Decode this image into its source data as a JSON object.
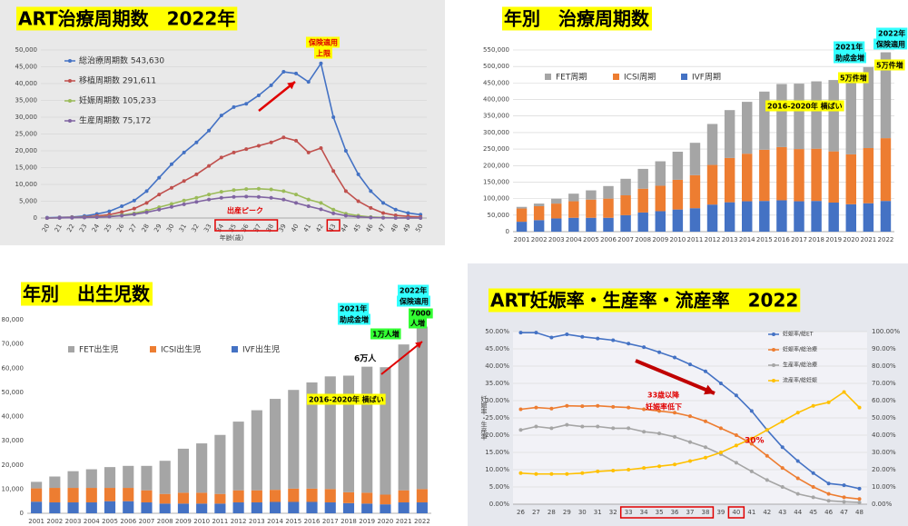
{
  "chart_data": [
    {
      "type": "line",
      "title": "ART治療周期数　2022年",
      "xlabel": "年齢(歳)",
      "categories": [
        "20",
        "21",
        "22",
        "23",
        "24",
        "25",
        "26",
        "27",
        "28",
        "29",
        "30",
        "31",
        "32",
        "33",
        "34",
        "35",
        "36",
        "37",
        "38",
        "39",
        "40",
        "41",
        "42",
        "43",
        "44",
        "45",
        "46",
        "47",
        "48",
        "49",
        "50"
      ],
      "series": [
        {
          "name": "総治療周期数 543,630",
          "color": "#4472c4",
          "values": [
            100,
            200,
            300,
            600,
            1200,
            2000,
            3500,
            5200,
            8000,
            12000,
            16000,
            19500,
            22500,
            26000,
            30500,
            33000,
            34000,
            36500,
            39500,
            43500,
            43000,
            40500,
            46000,
            30000,
            20000,
            13000,
            8000,
            4500,
            2500,
            1500,
            1000
          ]
        },
        {
          "name": "移植周期数 291,611",
          "color": "#c0504d",
          "values": [
            0,
            100,
            200,
            300,
            600,
            1000,
            1800,
            2800,
            4500,
            7000,
            9000,
            11000,
            13000,
            15500,
            18000,
            19500,
            20500,
            21500,
            22500,
            24000,
            23000,
            19500,
            20800,
            14000,
            8000,
            5000,
            3000,
            1500,
            800,
            500,
            300
          ]
        },
        {
          "name": "妊娠周期数 105,233",
          "color": "#9bbb59",
          "values": [
            0,
            50,
            100,
            200,
            300,
            500,
            900,
            1400,
            2200,
            3200,
            4200,
            5200,
            6000,
            7000,
            7800,
            8300,
            8600,
            8700,
            8500,
            8000,
            7000,
            5500,
            4500,
            2500,
            1300,
            700,
            300,
            150,
            80,
            40,
            20
          ]
        },
        {
          "name": "生産周期数 75,172",
          "color": "#8064a2",
          "values": [
            0,
            40,
            80,
            150,
            250,
            400,
            700,
            1100,
            1700,
            2500,
            3300,
            4100,
            4800,
            5500,
            6000,
            6300,
            6400,
            6300,
            6000,
            5500,
            4500,
            3500,
            2600,
            1400,
            700,
            350,
            150,
            70,
            30,
            15,
            10
          ]
        }
      ],
      "ylim": [
        0,
        50000
      ],
      "yticks": [
        0,
        {
          "value": 5000,
          "label": "5,000"
        },
        {
          "value": 10000,
          "label": "10,000"
        },
        {
          "value": 15000,
          "label": "15,000"
        },
        {
          "value": 20000,
          "label": "20,000"
        },
        {
          "value": 25000,
          "label": "25,000"
        },
        {
          "value": 30000,
          "label": "30,000"
        },
        {
          "value": 35000,
          "label": "35,000"
        },
        {
          "value": 40000,
          "label": "40,000"
        },
        {
          "value": 45000,
          "label": "45,000"
        },
        {
          "value": 50000,
          "label": "50,000"
        }
      ],
      "grid": true,
      "annotations": [
        "保険適用",
        "上限",
        "出産ピーク"
      ]
    },
    {
      "type": "bar",
      "title": "年別　治療周期数",
      "stacked": true,
      "categories": [
        "2001",
        "2002",
        "2003",
        "2004",
        "2005",
        "2006",
        "2007",
        "2008",
        "2009",
        "2010",
        "2011",
        "2012",
        "2013",
        "2014",
        "2015",
        "2016",
        "2017",
        "2018",
        "2019",
        "2020",
        "2021",
        "2022"
      ],
      "series": [
        {
          "name": "FET周期",
          "color": "#a5a5a5",
          "values": [
            5000,
            8000,
            15000,
            23000,
            28000,
            38000,
            50000,
            60000,
            74000,
            85000,
            98000,
            124000,
            145000,
            157000,
            176000,
            191000,
            198000,
            204000,
            216000,
            216000,
            245000,
            260000
          ]
        },
        {
          "name": "ICSI周期",
          "color": "#ed7d31",
          "values": [
            40000,
            42000,
            45000,
            50000,
            55000,
            58000,
            60000,
            72000,
            77000,
            90000,
            100000,
            120000,
            134000,
            144000,
            155000,
            161000,
            158000,
            158000,
            155000,
            151000,
            167000,
            190000
          ]
        },
        {
          "name": "IVF周期",
          "color": "#4472c4",
          "values": [
            30000,
            35000,
            40000,
            42000,
            42000,
            42000,
            50000,
            58000,
            62000,
            67000,
            71000,
            82000,
            89000,
            92000,
            93000,
            95000,
            92000,
            93000,
            88000,
            83000,
            86000,
            93000
          ]
        }
      ],
      "ylim": [
        0,
        550000
      ],
      "yticks": [
        0,
        {
          "value": 50000,
          "label": "50,000"
        },
        {
          "value": 100000,
          "label": "100,000"
        },
        {
          "value": 150000,
          "label": "150,000"
        },
        {
          "value": 200000,
          "label": "200,000"
        },
        {
          "value": 250000,
          "label": "250,000"
        },
        {
          "value": 300000,
          "label": "300,000"
        },
        {
          "value": 350000,
          "label": "350,000"
        },
        {
          "value": 400000,
          "label": "400,000"
        },
        {
          "value": 450000,
          "label": "450,000"
        },
        {
          "value": 500000,
          "label": "500,000"
        },
        {
          "value": 550000,
          "label": "550,000"
        }
      ],
      "grid": true,
      "annotations": [
        "2021年",
        "助成金増",
        "2022年",
        "保険適用",
        "5万件増",
        "5万件増",
        "2016-2020年 横ばい"
      ]
    },
    {
      "type": "bar",
      "title": "年別　出生児数",
      "stacked": true,
      "categories": [
        "2001",
        "2002",
        "2003",
        "2004",
        "2005",
        "2006",
        "2007",
        "2008",
        "2009",
        "2010",
        "2011",
        "2012",
        "2013",
        "2014",
        "2015",
        "2016",
        "2017",
        "2018",
        "2019",
        "2020",
        "2021",
        "2022"
      ],
      "series": [
        {
          "name": "FET出生児",
          "color": "#a5a5a5",
          "values": [
            2700,
            4700,
            6900,
            7700,
            8600,
            9100,
            10100,
            13700,
            18200,
            20400,
            24400,
            28400,
            33100,
            37600,
            40800,
            43900,
            46600,
            48200,
            52100,
            52700,
            60300,
            67200
          ]
        },
        {
          "name": "ICSI出生児",
          "color": "#ed7d31",
          "values": [
            5500,
            6000,
            6000,
            6000,
            5500,
            5500,
            5000,
            4000,
            4500,
            4500,
            4000,
            5000,
            5000,
            5000,
            5500,
            5500,
            5500,
            4500,
            4500,
            4000,
            5000,
            5500
          ]
        },
        {
          "name": "IVF出生児",
          "color": "#4472c4",
          "values": [
            4800,
            4500,
            4500,
            4500,
            5000,
            5000,
            4500,
            4000,
            4000,
            4000,
            4000,
            4500,
            4500,
            4700,
            4700,
            4700,
            4500,
            4200,
            4000,
            3700,
            4500,
            4500
          ]
        }
      ],
      "ylim": [
        0,
        80000
      ],
      "yticks": [
        0,
        {
          "value": 10000,
          "label": "10,000"
        },
        {
          "value": 20000,
          "label": "20,000"
        },
        {
          "value": 30000,
          "label": "30,000"
        },
        {
          "value": 40000,
          "label": "40,000"
        },
        {
          "value": 50000,
          "label": "50,000"
        },
        {
          "value": 60000,
          "label": "60,000"
        },
        {
          "value": 70000,
          "label": "70,000"
        },
        {
          "value": 80000,
          "label": "80,000"
        }
      ],
      "grid": false,
      "annotations": [
        "2022年",
        "保険適用",
        "2021年",
        "助成金増",
        "1万人増",
        "7000",
        "人増",
        "6万人",
        "2016-2020年 横ばい"
      ]
    },
    {
      "type": "line",
      "title": "ART妊娠率・生産率・流産率　2022",
      "ylabel": "妊娠率・生産率",
      "categories": [
        "26",
        "27",
        "28",
        "29",
        "30",
        "31",
        "32",
        "33",
        "34",
        "35",
        "36",
        "37",
        "38",
        "39",
        "40",
        "41",
        "42",
        "43",
        "44",
        "45",
        "46",
        "47",
        "48"
      ],
      "series": [
        {
          "name": "妊娠率/総ET",
          "color": "#4472c4",
          "values": [
            49.7,
            49.7,
            48.3,
            49.2,
            48.5,
            48,
            47.5,
            46.5,
            45.5,
            44,
            42.5,
            40.5,
            38.5,
            35,
            31.5,
            27,
            21.5,
            16.5,
            12.5,
            9,
            6,
            5.5,
            4.5
          ]
        },
        {
          "name": "妊娠率/総治療",
          "color": "#ed7d31",
          "values": [
            27.5,
            28,
            27.7,
            28.5,
            28.4,
            28.5,
            28.2,
            28,
            27.5,
            27,
            26.5,
            25.5,
            24,
            22,
            20,
            17.5,
            14,
            10.5,
            7.5,
            5,
            3,
            2,
            1.5
          ]
        },
        {
          "name": "生産率/総治療",
          "color": "#a5a5a5",
          "values": [
            21.5,
            22.5,
            22,
            23,
            22.5,
            22.5,
            22,
            22,
            21,
            20.5,
            19.5,
            18,
            16.5,
            14.5,
            12,
            9.5,
            7,
            5,
            3,
            2,
            1,
            0.7,
            0.5
          ]
        },
        {
          "name": "流産率/総妊娠",
          "color": "#ffc000",
          "axis": "y2",
          "values": [
            18,
            17.5,
            17.5,
            17.5,
            18,
            19,
            19.5,
            20,
            21,
            22,
            23,
            25,
            27,
            30,
            34,
            38,
            43,
            48,
            53,
            57,
            59,
            65,
            56
          ]
        }
      ],
      "ylim": [
        0,
        50
      ],
      "yticks": [
        {
          "value": 0,
          "label": "0.00%"
        },
        {
          "value": 5,
          "label": "5.00%"
        },
        {
          "value": 10,
          "label": "10.00%"
        },
        {
          "value": 15,
          "label": "15.00%"
        },
        {
          "value": 20,
          "label": "20.00%"
        },
        {
          "value": 25,
          "label": "25.00%"
        },
        {
          "value": 30,
          "label": "30.00%"
        },
        {
          "value": 35,
          "label": "35.00%"
        },
        {
          "value": 40,
          "label": "40.00%"
        },
        {
          "value": 45,
          "label": "45.00%"
        },
        {
          "value": 50,
          "label": "50.00%"
        }
      ],
      "y2lim": [
        0,
        100
      ],
      "y2ticks": [
        {
          "value": 0,
          "label": "0.00%"
        },
        {
          "value": 10,
          "label": "10.00%"
        },
        {
          "value": 20,
          "label": "20.00%"
        },
        {
          "value": 30,
          "label": "30.00%"
        },
        {
          "value": 40,
          "label": "40.00%"
        },
        {
          "value": 50,
          "label": "50.00%"
        },
        {
          "value": 60,
          "label": "60.00%"
        },
        {
          "value": 70,
          "label": "70.00%"
        },
        {
          "value": 80,
          "label": "80.00%"
        },
        {
          "value": 90,
          "label": "90.00%"
        },
        {
          "value": 100,
          "label": "100.00%"
        }
      ],
      "grid": true,
      "annotations": [
        "33歳以降",
        "妊娠率低下",
        "30%"
      ]
    }
  ]
}
